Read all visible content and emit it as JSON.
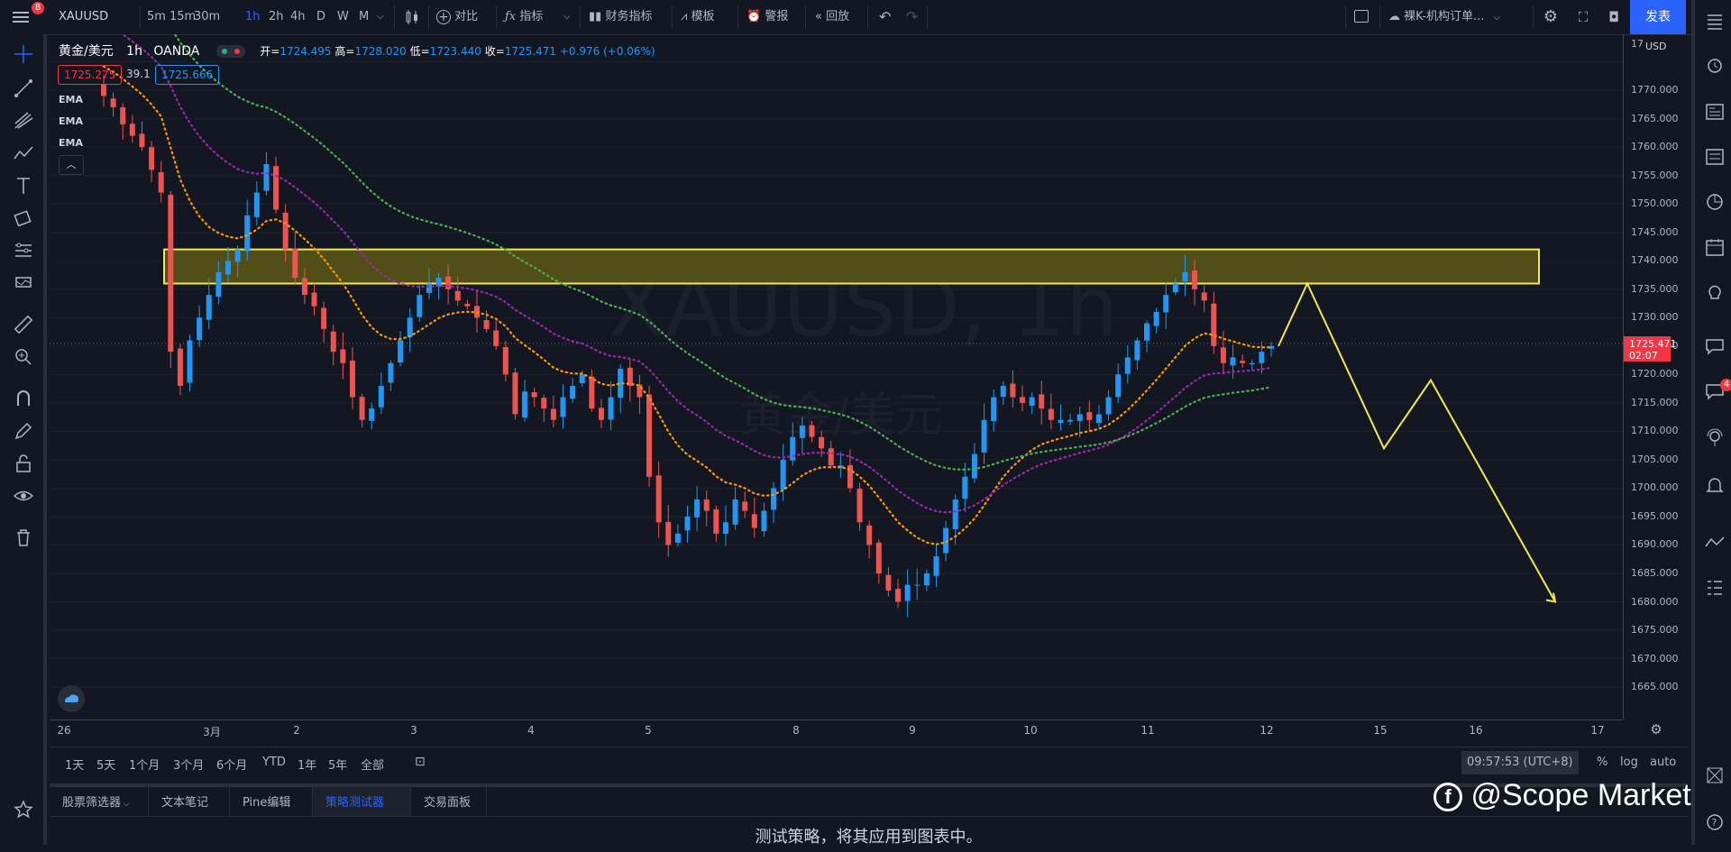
{
  "topbar": {
    "badge": "8",
    "symbol": "XAUUSD",
    "intervals": [
      "5m",
      "15m",
      "30m",
      "1h",
      "2h",
      "4h",
      "D",
      "W",
      "M"
    ],
    "active_interval": "1h",
    "compare": "对比",
    "indicators": "指标",
    "financials": "财务指标",
    "templates": "模板",
    "alert": "警报",
    "replay": "回放",
    "layout_name": "裸K-机构订单...",
    "publish": "发表"
  },
  "legend": {
    "title": "黄金/美元",
    "interval": "1h",
    "source": "OANDA",
    "open_label": "开=",
    "open": "1724.495",
    "high_label": "高=",
    "high": "1728.020",
    "low_label": "低=",
    "low": "1723.440",
    "close_label": "收=",
    "close": "1725.471",
    "change": "+0.976 (+0.06%)",
    "bid": "1725.275",
    "spread": "39.1",
    "ask": "1725.666",
    "ema_labels": [
      "EMA",
      "EMA",
      "EMA"
    ]
  },
  "watermark": {
    "symbol": "XAUUSD, 1h",
    "name": "黄金/美元"
  },
  "price_axis": {
    "currency": "USD",
    "labels": [
      "1770.000",
      "1765.000",
      "1760.000",
      "1755.000",
      "1750.000",
      "1745.000",
      "1740.000",
      "1735.000",
      "1730.000",
      "1725.000",
      "1720.000",
      "1715.000",
      "1710.000",
      "1705.000",
      "1700.000",
      "1695.000",
      "1690.000",
      "1685.000",
      "1680.000",
      "1675.000",
      "1670.000",
      "1665.000"
    ],
    "current_price": "1725.471",
    "countdown": "02:07",
    "top_partial": "17"
  },
  "time_axis": {
    "labels": [
      "26",
      "3月",
      "2",
      "3",
      "4",
      "5",
      "8",
      "9",
      "10",
      "11",
      "12",
      "15",
      "16",
      "17"
    ]
  },
  "range_bar": {
    "ranges": [
      "1天",
      "5天",
      "1个月",
      "3个月",
      "6个月",
      "YTD",
      "1年",
      "5年",
      "全部"
    ],
    "clock": "09:57:53 (UTC+8)",
    "percent": "%",
    "log": "log",
    "auto": "auto"
  },
  "panel": {
    "tabs": [
      "股票筛选器",
      "文本笔记",
      "Pine编辑器",
      "策略测试器",
      "交易面板"
    ],
    "active_tab": "策略测试器",
    "message": "测试策略，将其应用到图表中。"
  },
  "watermark_brand": "@Scope Markets",
  "right_badge": "4",
  "colors": {
    "up": "#2196f3",
    "down": "#ef5350",
    "ema_fast": "#ff9800",
    "ema_mid": "#9c27b0",
    "ema_slow": "#4caf50",
    "zone": "#5a5417",
    "projection": "#f5e84a",
    "accent": "#2962ff"
  },
  "chart_data": {
    "type": "candlestick",
    "symbol": "XAUUSD",
    "interval": "1h",
    "ylim": [
      1662,
      1777
    ],
    "resistance_zone": [
      1736,
      1742
    ],
    "close": [
      1769,
      1767,
      1764,
      1762,
      1760,
      1756,
      1752,
      1724,
      1718,
      1726,
      1730,
      1734,
      1738,
      1740,
      1742,
      1748,
      1752,
      1757,
      1749,
      1742,
      1737,
      1734,
      1732,
      1728,
      1724,
      1722,
      1716,
      1712,
      1714,
      1718,
      1722,
      1726,
      1730,
      1734,
      1736,
      1737,
      1735,
      1733,
      1732,
      1730,
      1728,
      1725,
      1720,
      1713,
      1717,
      1716,
      1714,
      1712,
      1716,
      1718,
      1720,
      1714,
      1712,
      1716,
      1721,
      1718,
      1716,
      1702,
      1694,
      1690,
      1692,
      1695,
      1698,
      1696,
      1692,
      1694,
      1698,
      1696,
      1693,
      1696,
      1700,
      1705,
      1709,
      1711,
      1709,
      1707,
      1704,
      1704,
      1700,
      1694,
      1690,
      1685,
      1682,
      1680,
      1683,
      1683,
      1685,
      1688,
      1693,
      1698,
      1702,
      1706,
      1712,
      1716,
      1718,
      1716,
      1715,
      1716,
      1714,
      1712,
      1712,
      1712,
      1713,
      1712,
      1713,
      1716,
      1720,
      1723,
      1726,
      1729,
      1731,
      1734,
      1736,
      1738,
      1735,
      1733,
      1725,
      1722,
      1723,
      1722,
      1722,
      1724,
      1725
    ]
  }
}
